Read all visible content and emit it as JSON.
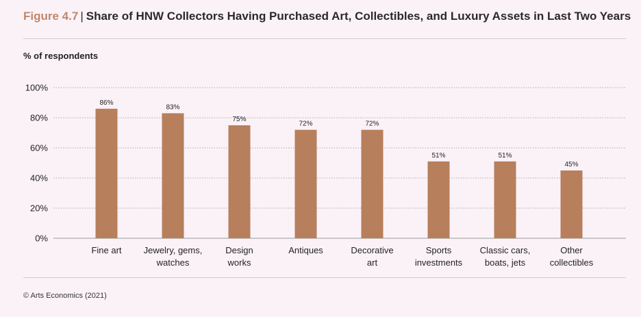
{
  "figure": {
    "number": "Figure 4.7",
    "separator": "|",
    "title": "Share of HNW Collectors Having Purchased Art, Collectibles, and Luxury Assets in Last Two Years"
  },
  "source": "© Arts Economics (2021)",
  "colors": {
    "bar": "#b77f5c",
    "accent": "#c0876a",
    "grid": "#a9a9a9"
  },
  "chart_data": {
    "type": "bar",
    "title": "Share of HNW Collectors Having Purchased Art, Collectibles, and Luxury Assets in Last Two Years",
    "ylabel": "% of respondents",
    "xlabel": "",
    "ylim": [
      0,
      100
    ],
    "yticks": [
      "0%",
      "20%",
      "40%",
      "60%",
      "80%",
      "100%"
    ],
    "grid": true,
    "categories": [
      [
        "Fine art"
      ],
      [
        "Jewelry, gems,",
        "watches"
      ],
      [
        "Design",
        "works"
      ],
      [
        "Antiques"
      ],
      [
        "Decorative",
        "art"
      ],
      [
        "Sports",
        "investments"
      ],
      [
        "Classic cars,",
        "boats, jets"
      ],
      [
        "Other",
        "collectibles"
      ]
    ],
    "values": [
      86,
      83,
      75,
      72,
      72,
      51,
      51,
      45
    ],
    "value_labels": [
      "86%",
      "83%",
      "75%",
      "72%",
      "72%",
      "51%",
      "51%",
      "45%"
    ]
  }
}
